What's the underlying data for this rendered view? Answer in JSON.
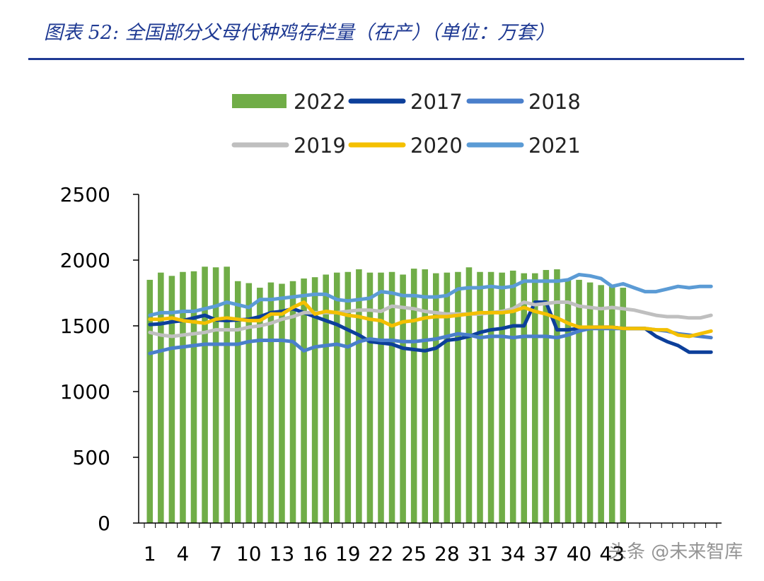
{
  "title": "图表 52: 全国部分父母代种鸡存栏量（在产）（单位：万套）",
  "watermark": "头条 @未来智库",
  "chart_data": {
    "type": "bar+line",
    "title": "全国部分父母代种鸡存栏量（在产）（单位：万套）",
    "xlabel": "",
    "ylabel": "万套",
    "ylim": [
      0,
      2500
    ],
    "yticks": [
      0,
      500,
      1000,
      1500,
      2000,
      2500
    ],
    "xticks": [
      1,
      4,
      7,
      10,
      13,
      16,
      19,
      22,
      25,
      28,
      31,
      34,
      37,
      40,
      43
    ],
    "x_count": 52,
    "legend": [
      "2022",
      "2017",
      "2018",
      "2019",
      "2020",
      "2021"
    ],
    "legend_position": "top-center",
    "colors": {
      "2022": "#70ad47",
      "2017": "#0c3f9a",
      "2018": "#4a7fcb",
      "2019": "#bfbfbf",
      "2020": "#f4c000",
      "2021": "#5b9bd5"
    },
    "bar_series": {
      "name": "2022",
      "values": [
        1850,
        1905,
        1880,
        1910,
        1915,
        1950,
        1945,
        1950,
        1840,
        1825,
        1790,
        1830,
        1820,
        1840,
        1860,
        1870,
        1890,
        1905,
        1910,
        1930,
        1905,
        1905,
        1910,
        1890,
        1935,
        1930,
        1900,
        1905,
        1910,
        1945,
        1910,
        1910,
        1905,
        1920,
        1900,
        1900,
        1925,
        1930,
        1860,
        1850,
        1830,
        1810,
        1800,
        1790
      ]
    },
    "line_series": [
      {
        "name": "2017",
        "values": [
          1510,
          1515,
          1530,
          1540,
          1560,
          1580,
          1545,
          1540,
          1545,
          1550,
          1570,
          1600,
          1610,
          1630,
          1600,
          1570,
          1540,
          1510,
          1470,
          1430,
          1380,
          1370,
          1360,
          1330,
          1320,
          1310,
          1330,
          1390,
          1400,
          1420,
          1450,
          1470,
          1480,
          1500,
          1500,
          1680,
          1680,
          1470,
          1470,
          1480,
          1490,
          1490,
          1490,
          1480,
          1480,
          1480,
          1420,
          1380,
          1350,
          1300,
          1300,
          1300
        ]
      },
      {
        "name": "2018",
        "values": [
          1290,
          1310,
          1330,
          1340,
          1350,
          1360,
          1360,
          1360,
          1360,
          1380,
          1390,
          1390,
          1390,
          1380,
          1310,
          1340,
          1350,
          1360,
          1340,
          1380,
          1400,
          1390,
          1390,
          1380,
          1380,
          1390,
          1400,
          1420,
          1440,
          1430,
          1410,
          1420,
          1420,
          1410,
          1420,
          1420,
          1420,
          1410,
          1430,
          1460,
          1480,
          1480,
          1480,
          1480,
          1480,
          1480,
          1470,
          1460,
          1440,
          1430,
          1420,
          1410
        ]
      },
      {
        "name": "2019",
        "values": [
          1450,
          1430,
          1420,
          1430,
          1440,
          1450,
          1470,
          1470,
          1470,
          1490,
          1500,
          1520,
          1550,
          1570,
          1600,
          1600,
          1600,
          1600,
          1610,
          1620,
          1620,
          1610,
          1650,
          1640,
          1630,
          1610,
          1600,
          1590,
          1590,
          1590,
          1590,
          1600,
          1610,
          1630,
          1680,
          1660,
          1670,
          1680,
          1680,
          1650,
          1640,
          1630,
          1640,
          1630,
          1620,
          1600,
          1580,
          1570,
          1570,
          1560,
          1560,
          1580
        ]
      },
      {
        "name": "2020",
        "values": [
          1550,
          1550,
          1560,
          1540,
          1530,
          1520,
          1550,
          1560,
          1550,
          1540,
          1540,
          1590,
          1590,
          1640,
          1680,
          1590,
          1610,
          1600,
          1580,
          1570,
          1550,
          1540,
          1500,
          1530,
          1540,
          1560,
          1570,
          1570,
          1580,
          1590,
          1600,
          1600,
          1600,
          1610,
          1640,
          1610,
          1590,
          1560,
          1520,
          1490,
          1490,
          1490,
          1490,
          1480,
          1480,
          1480,
          1470,
          1470,
          1430,
          1420,
          1440,
          1460
        ]
      },
      {
        "name": "2021",
        "values": [
          1580,
          1600,
          1600,
          1610,
          1610,
          1630,
          1650,
          1680,
          1660,
          1640,
          1700,
          1700,
          1710,
          1720,
          1730,
          1740,
          1740,
          1700,
          1690,
          1700,
          1710,
          1760,
          1750,
          1730,
          1730,
          1720,
          1720,
          1730,
          1780,
          1790,
          1790,
          1800,
          1790,
          1800,
          1840,
          1840,
          1840,
          1840,
          1850,
          1890,
          1880,
          1860,
          1800,
          1820,
          1790,
          1760,
          1760,
          1780,
          1800,
          1790,
          1800,
          1800
        ]
      }
    ]
  }
}
